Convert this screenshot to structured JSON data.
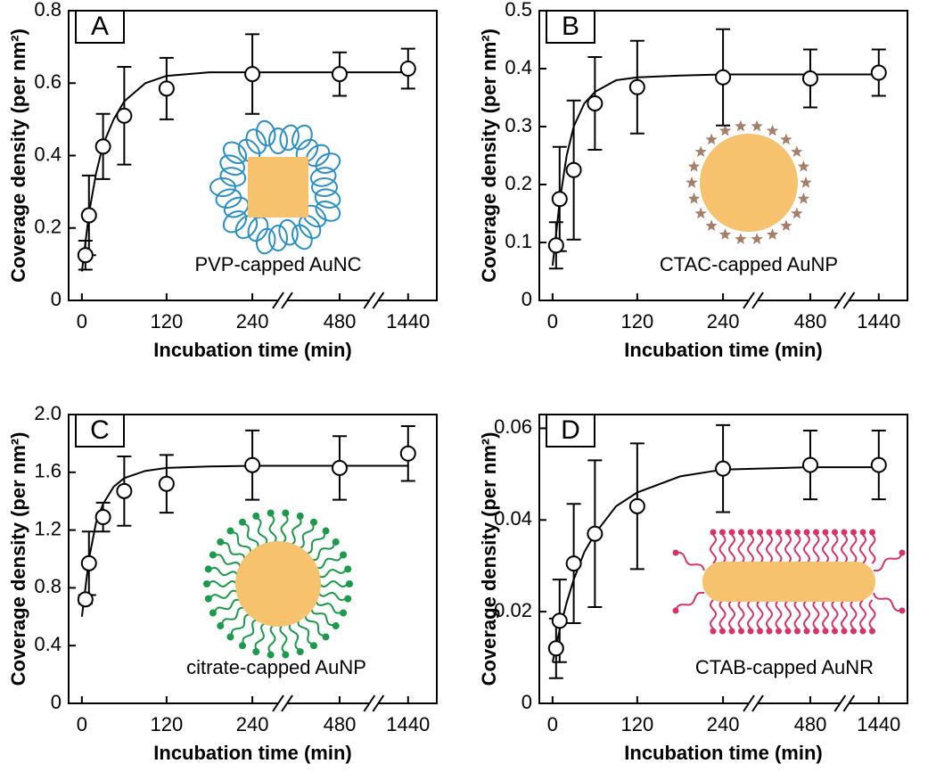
{
  "chart_data": [
    {
      "type": "scatter",
      "panel": "A",
      "annotation": "PVP-capped AuNC",
      "xlabel": "Incubation time (min)",
      "ylabel": "Coverage density (per nm²)",
      "broken_axis": true,
      "x": [
        5,
        10,
        30,
        60,
        120,
        240,
        480,
        1440
      ],
      "values": [
        0.125,
        0.235,
        0.425,
        0.51,
        0.585,
        0.625,
        0.625,
        0.64
      ],
      "errors": [
        0.04,
        0.11,
        0.09,
        0.135,
        0.085,
        0.11,
        0.06,
        0.055
      ],
      "fit": {
        "x": [
          0,
          10,
          20,
          30,
          45,
          60,
          90,
          120,
          180,
          240,
          480,
          1440
        ],
        "values": [
          0.08,
          0.24,
          0.35,
          0.43,
          0.5,
          0.55,
          0.6,
          0.62,
          0.63,
          0.63,
          0.63,
          0.63
        ]
      },
      "xlim": [
        -20,
        1840
      ],
      "xticks": [
        0,
        120,
        240,
        480,
        1440
      ],
      "ylim": [
        0,
        0.8
      ],
      "yticks": [
        0,
        0.2,
        0.4,
        0.6,
        0.8
      ]
    },
    {
      "type": "scatter",
      "panel": "B",
      "annotation": "CTAC-capped AuNP",
      "xlabel": "Incubation time (min)",
      "ylabel": "Coverage density (per nm²)",
      "broken_axis": true,
      "x": [
        5,
        10,
        30,
        60,
        120,
        240,
        480,
        1440
      ],
      "values": [
        0.095,
        0.175,
        0.225,
        0.34,
        0.368,
        0.385,
        0.383,
        0.393
      ],
      "errors": [
        0.04,
        0.09,
        0.12,
        0.08,
        0.08,
        0.083,
        0.05,
        0.04
      ],
      "fit": {
        "x": [
          0,
          10,
          20,
          30,
          45,
          60,
          90,
          120,
          180,
          240,
          480,
          1440
        ],
        "values": [
          0.06,
          0.17,
          0.25,
          0.3,
          0.34,
          0.36,
          0.38,
          0.385,
          0.388,
          0.39,
          0.39,
          0.39
        ]
      },
      "xlim": [
        -20,
        1840
      ],
      "xticks": [
        0,
        120,
        240,
        480,
        1440
      ],
      "ylim": [
        0,
        0.5
      ],
      "yticks": [
        0,
        0.1,
        0.2,
        0.3,
        0.4,
        0.5
      ]
    },
    {
      "type": "scatter",
      "panel": "C",
      "annotation": "citrate-capped AuNP",
      "xlabel": "Incubation time (min)",
      "ylabel": "Coverage density (per nm²)",
      "broken_axis": true,
      "x": [
        5,
        10,
        30,
        60,
        120,
        240,
        480,
        1440
      ],
      "values": [
        0.72,
        0.97,
        1.29,
        1.47,
        1.52,
        1.65,
        1.63,
        1.73
      ],
      "errors": [
        0.03,
        0.22,
        0.1,
        0.24,
        0.2,
        0.24,
        0.22,
        0.19
      ],
      "fit": {
        "x": [
          0,
          10,
          20,
          30,
          45,
          60,
          90,
          120,
          180,
          240,
          480,
          1440
        ],
        "values": [
          0.6,
          1.0,
          1.25,
          1.38,
          1.5,
          1.56,
          1.61,
          1.63,
          1.64,
          1.645,
          1.645,
          1.645
        ]
      },
      "xlim": [
        -20,
        1840
      ],
      "xticks": [
        0,
        120,
        240,
        480,
        1440
      ],
      "ylim": [
        0,
        2
      ],
      "yticks": [
        0,
        0.4,
        0.8,
        1.2,
        1.6,
        {
          "value": 2,
          "label": "2.0"
        }
      ]
    },
    {
      "type": "scatter",
      "panel": "D",
      "annotation": "CTAB-capped AuNR",
      "xlabel": "Incubation time (min)",
      "ylabel": "Coverage density (per nm²)",
      "broken_axis": true,
      "x": [
        5,
        10,
        30,
        60,
        120,
        240,
        480,
        1440
      ],
      "values": [
        0.012,
        0.018,
        0.0305,
        0.037,
        0.043,
        0.0512,
        0.052,
        0.052
      ],
      "errors": [
        0.0065,
        0.009,
        0.013,
        0.016,
        0.0137,
        0.0095,
        0.0075,
        0.0075
      ],
      "fit": {
        "x": [
          0,
          10,
          20,
          30,
          45,
          60,
          90,
          120,
          180,
          240,
          480,
          1440
        ],
        "values": [
          0.009,
          0.016,
          0.022,
          0.027,
          0.033,
          0.037,
          0.043,
          0.046,
          0.0495,
          0.051,
          0.0515,
          0.0515
        ]
      },
      "xlim": [
        -20,
        1840
      ],
      "xticks": [
        0,
        120,
        240,
        480,
        1440
      ],
      "ylim": [
        0,
        0.063
      ],
      "yticks": [
        0,
        0.02,
        0.04,
        0.06
      ]
    }
  ]
}
